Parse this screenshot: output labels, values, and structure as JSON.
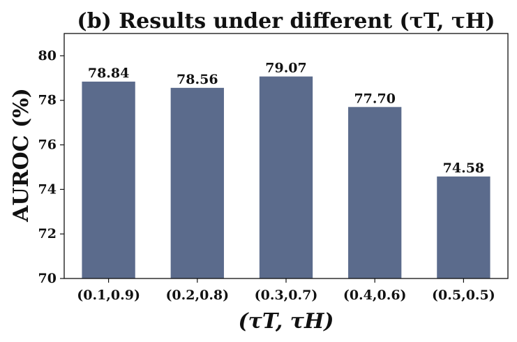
{
  "chart_data": {
    "type": "bar",
    "title": "(b) Results under different (τT, τH)",
    "xlabel": "(τT, τH)",
    "ylabel": "AUROC (%)",
    "categories": [
      "(0.1,0.9)",
      "(0.2,0.8)",
      "(0.3,0.7)",
      "(0.4,0.6)",
      "(0.5,0.5)"
    ],
    "values": [
      78.84,
      78.56,
      79.07,
      77.7,
      74.58
    ],
    "value_labels": [
      "78.84",
      "78.56",
      "79.07",
      "77.70",
      "74.58"
    ],
    "ylim": [
      70,
      81
    ],
    "yticks": [
      70,
      72,
      74,
      76,
      78,
      80
    ],
    "grid": false,
    "bar_color": "#5b6b8c"
  }
}
